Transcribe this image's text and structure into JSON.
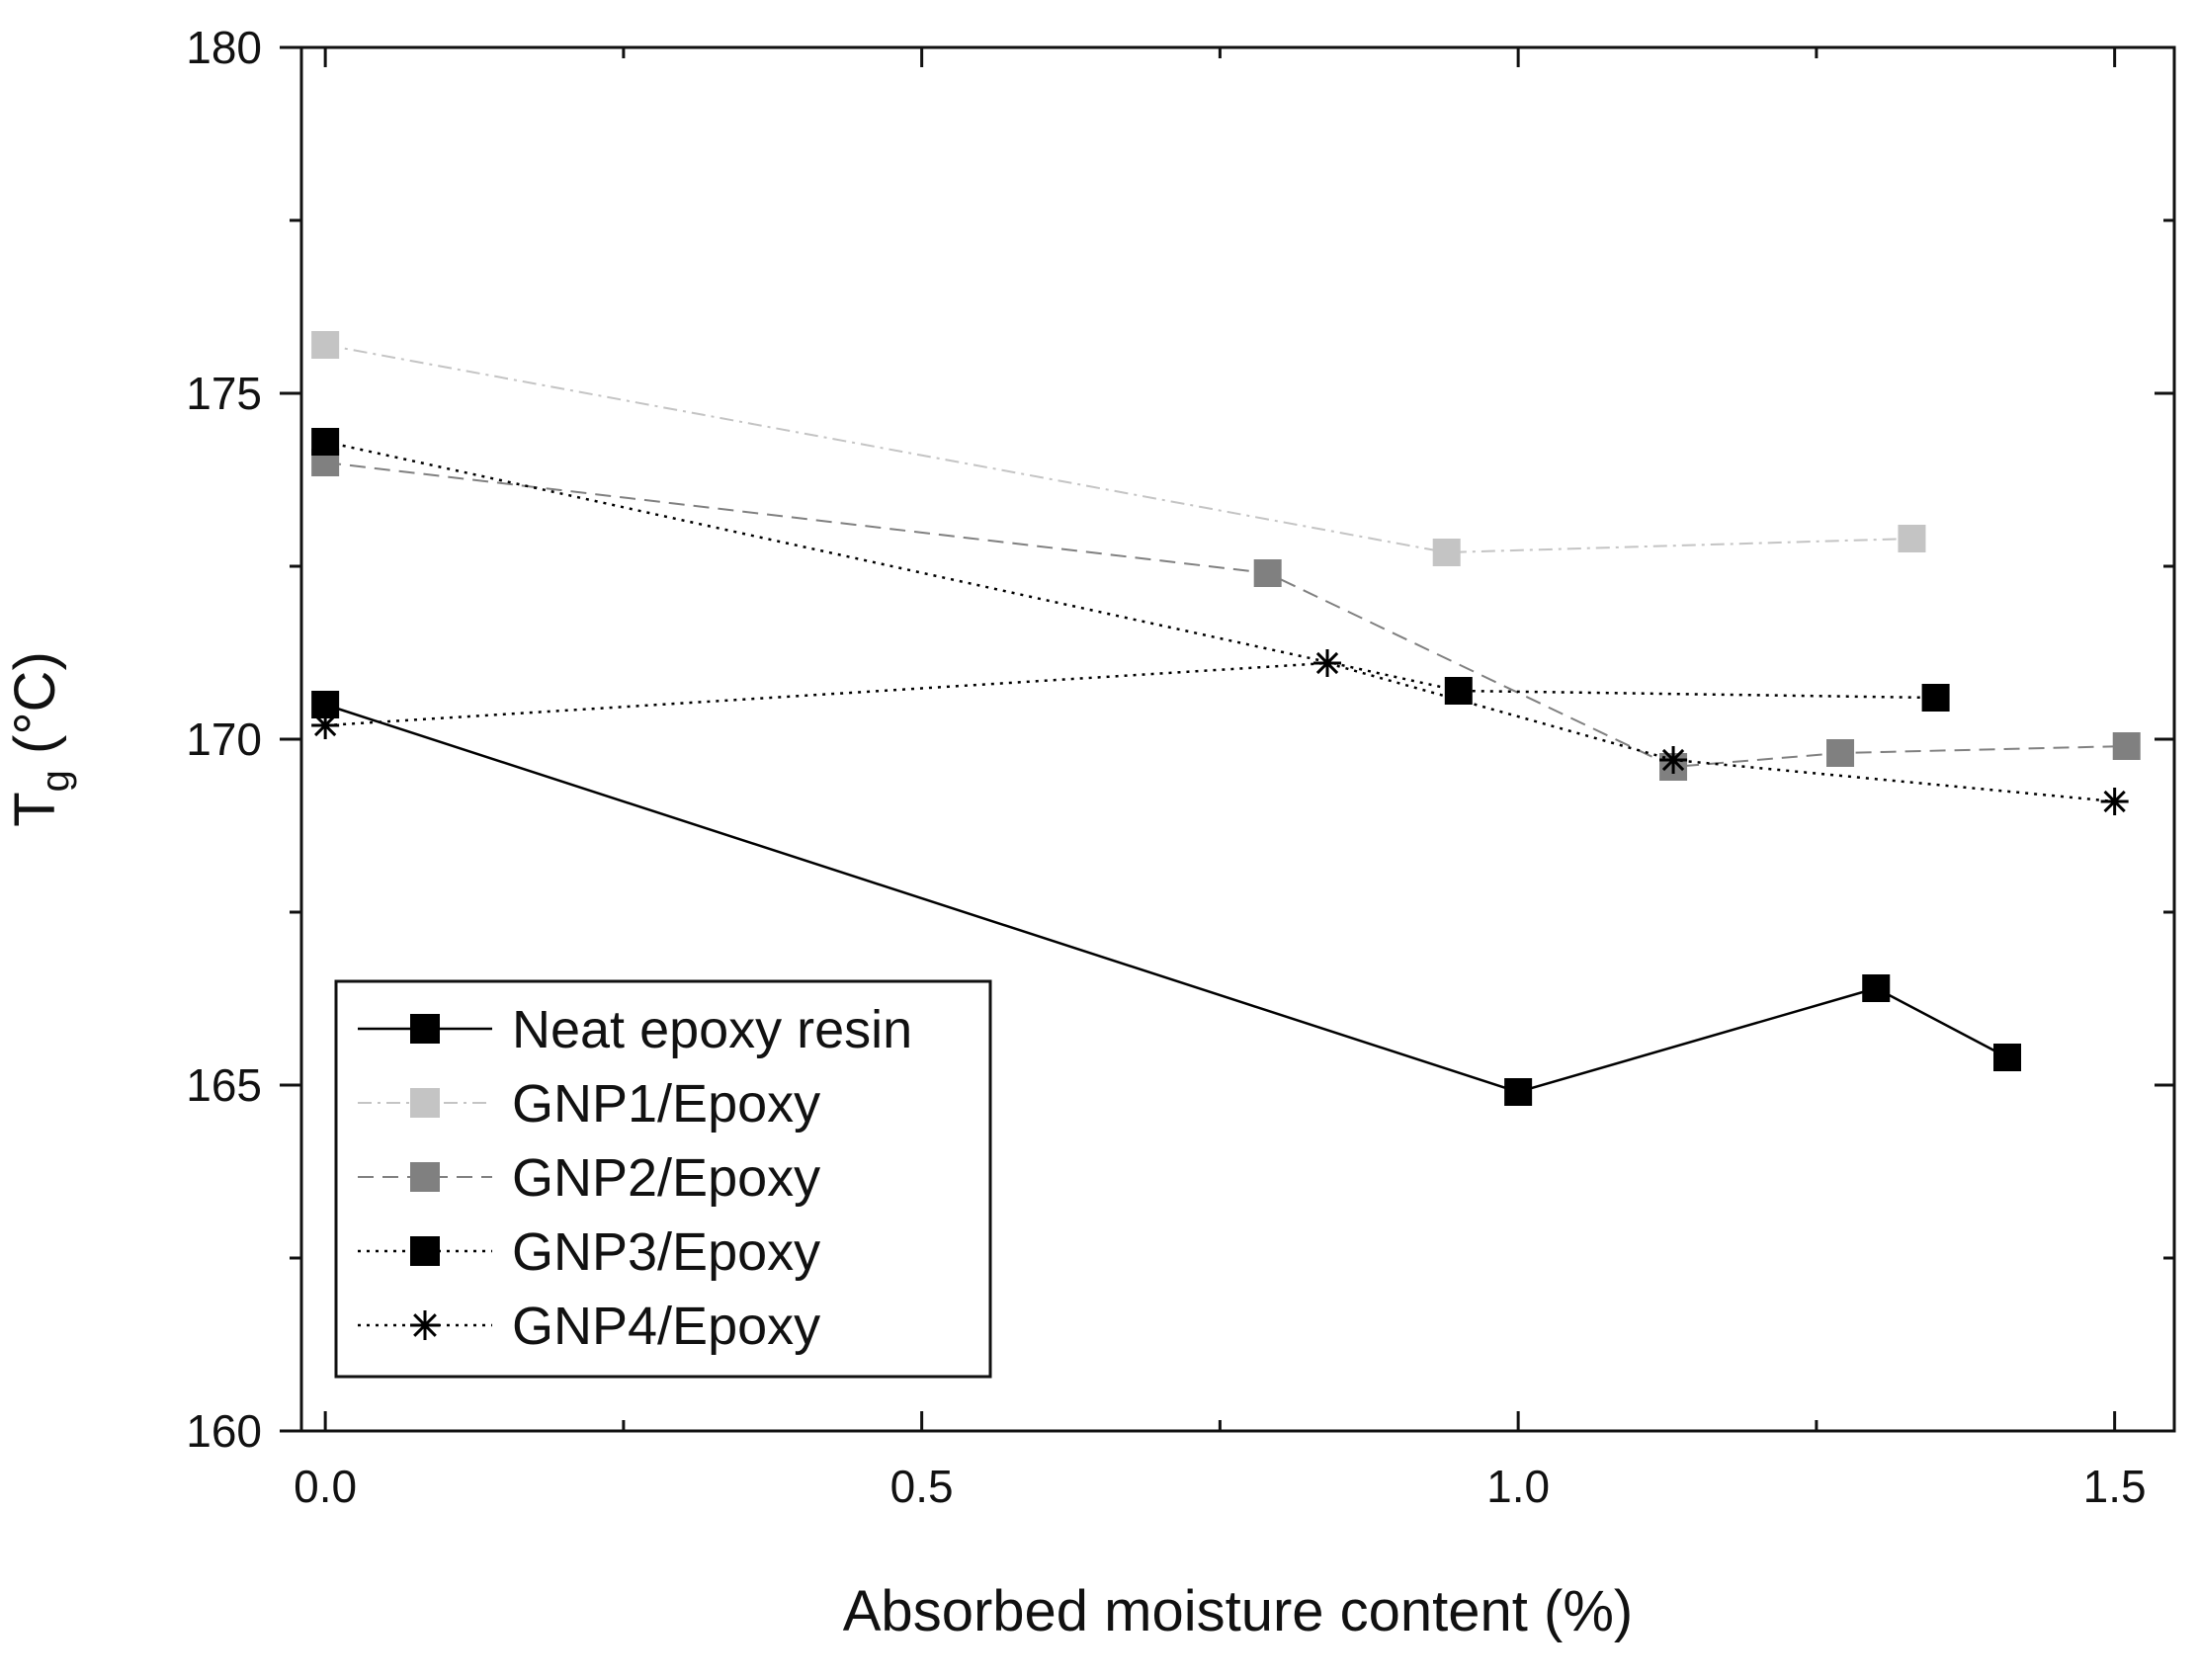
{
  "chart_data": {
    "type": "line",
    "xlabel": "Absorbed moisture content (%)",
    "ylabel": {
      "main": "T",
      "sub": "g",
      "unit": " (°C)"
    },
    "xlim": [
      -0.02,
      1.55
    ],
    "ylim": [
      160,
      180
    ],
    "xticks": [
      0.0,
      0.5,
      1.0,
      1.5
    ],
    "xtick_labels": [
      "0.0",
      "0.5",
      "1.0",
      "1.5"
    ],
    "xminor": [
      0.25,
      0.75,
      1.25
    ],
    "yticks": [
      160,
      165,
      170,
      175,
      180
    ],
    "ytick_labels": [
      "160",
      "165",
      "170",
      "175",
      "180"
    ],
    "yminor": [
      162.5,
      167.5,
      172.5,
      177.5
    ],
    "grid": false,
    "legend_position": "bottom-left",
    "series": [
      {
        "name": "Neat epoxy resin",
        "marker": "square",
        "color": "#000000",
        "line": "solid",
        "x": [
          0.0,
          1.0,
          1.3,
          1.41
        ],
        "y": [
          170.5,
          164.9,
          166.4,
          165.4
        ]
      },
      {
        "name": "GNP1/Epoxy",
        "marker": "square",
        "color": "#c4c4c4",
        "line": "dashdot",
        "x": [
          0.0,
          0.94,
          1.33
        ],
        "y": [
          175.7,
          172.7,
          172.9
        ]
      },
      {
        "name": "GNP2/Epoxy",
        "marker": "square",
        "color": "#808080",
        "line": "dashed",
        "x": [
          0.0,
          0.79,
          1.13,
          1.27,
          1.51
        ],
        "y": [
          174.0,
          172.4,
          169.6,
          169.8,
          169.9
        ]
      },
      {
        "name": "GNP3/Epoxy",
        "marker": "square",
        "color": "#000000",
        "line": "dotted",
        "x": [
          0.0,
          0.95,
          1.35
        ],
        "y": [
          174.3,
          170.7,
          170.6
        ]
      },
      {
        "name": "GNP4/Epoxy",
        "marker": "asterisk",
        "color": "#000000",
        "line": "dotted",
        "x": [
          0.0,
          0.84,
          1.13,
          1.5
        ],
        "y": [
          170.2,
          171.1,
          169.7,
          169.1
        ]
      }
    ]
  }
}
